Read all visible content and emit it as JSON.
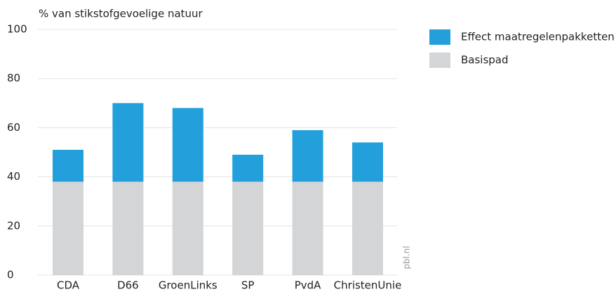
{
  "chart_data": {
    "type": "stacked_bar",
    "y_label": "% van stikstofgevoelige natuur",
    "categories": [
      "CDA",
      "D66",
      "GroenLinks",
      "SP",
      "PvdA",
      "ChristenUnie"
    ],
    "series": [
      {
        "name": "Basispad",
        "color": "#d3d5d7",
        "values": [
          38,
          38,
          38,
          38,
          38,
          38
        ]
      },
      {
        "name": "Effect maatregelenpakketten",
        "color": "#23a0db",
        "values": [
          13,
          32,
          30,
          11,
          21,
          16
        ]
      }
    ],
    "ylim": [
      0,
      100
    ],
    "yticks": [
      0,
      20,
      40,
      60,
      80,
      100
    ],
    "grid": true,
    "legend": "right",
    "source": "pbl.nl"
  }
}
